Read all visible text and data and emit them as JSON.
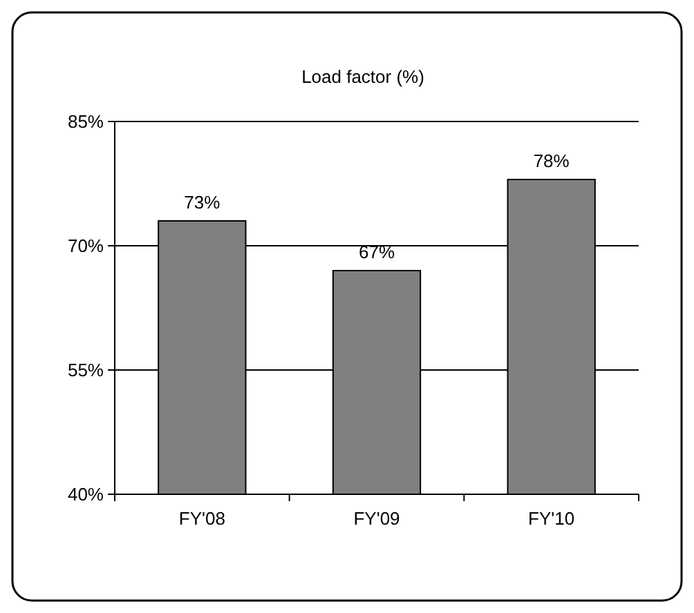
{
  "chart_data": {
    "type": "bar",
    "title": "Load factor (%)",
    "categories": [
      "FY'08",
      "FY'09",
      "FY'10"
    ],
    "values": [
      73,
      67,
      78
    ],
    "color": "#808080",
    "value_labels": [
      "73%",
      "67%",
      "78%"
    ],
    "ylim": [
      40,
      85
    ],
    "yticks": [
      {
        "value": 40,
        "label": "40%"
      },
      {
        "value": 55,
        "label": "55%"
      },
      {
        "value": 70,
        "label": "70%"
      },
      {
        "value": 85,
        "label": "85%"
      }
    ],
    "grid": "y"
  }
}
